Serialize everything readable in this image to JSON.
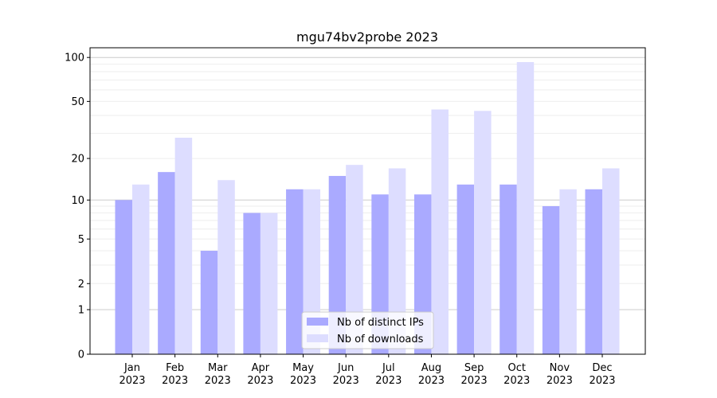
{
  "chart_data": {
    "type": "bar",
    "title": "mgu74bv2probe 2023",
    "xlabel": "",
    "ylabel": "",
    "yscale": "log(1+y)",
    "ylim": [
      0,
      110
    ],
    "yticks": [
      0,
      1,
      2,
      5,
      10,
      20,
      50,
      100
    ],
    "grid": true,
    "legend_position": "lower center",
    "categories": [
      "Jan\n2023",
      "Feb\n2023",
      "Mar\n2023",
      "Apr\n2023",
      "May\n2023",
      "Jun\n2023",
      "Jul\n2023",
      "Aug\n2023",
      "Sep\n2023",
      "Oct\n2023",
      "Nov\n2023",
      "Dec\n2023"
    ],
    "series": [
      {
        "name": "Nb of distinct IPs",
        "color": "#aaaaff",
        "values": [
          10,
          16,
          4,
          8,
          12,
          15,
          11,
          11,
          13,
          13,
          9,
          12
        ]
      },
      {
        "name": "Nb of downloads",
        "color": "#ddddff",
        "values": [
          13,
          28,
          14,
          8,
          12,
          18,
          17,
          44,
          43,
          93,
          12,
          17
        ]
      }
    ]
  }
}
